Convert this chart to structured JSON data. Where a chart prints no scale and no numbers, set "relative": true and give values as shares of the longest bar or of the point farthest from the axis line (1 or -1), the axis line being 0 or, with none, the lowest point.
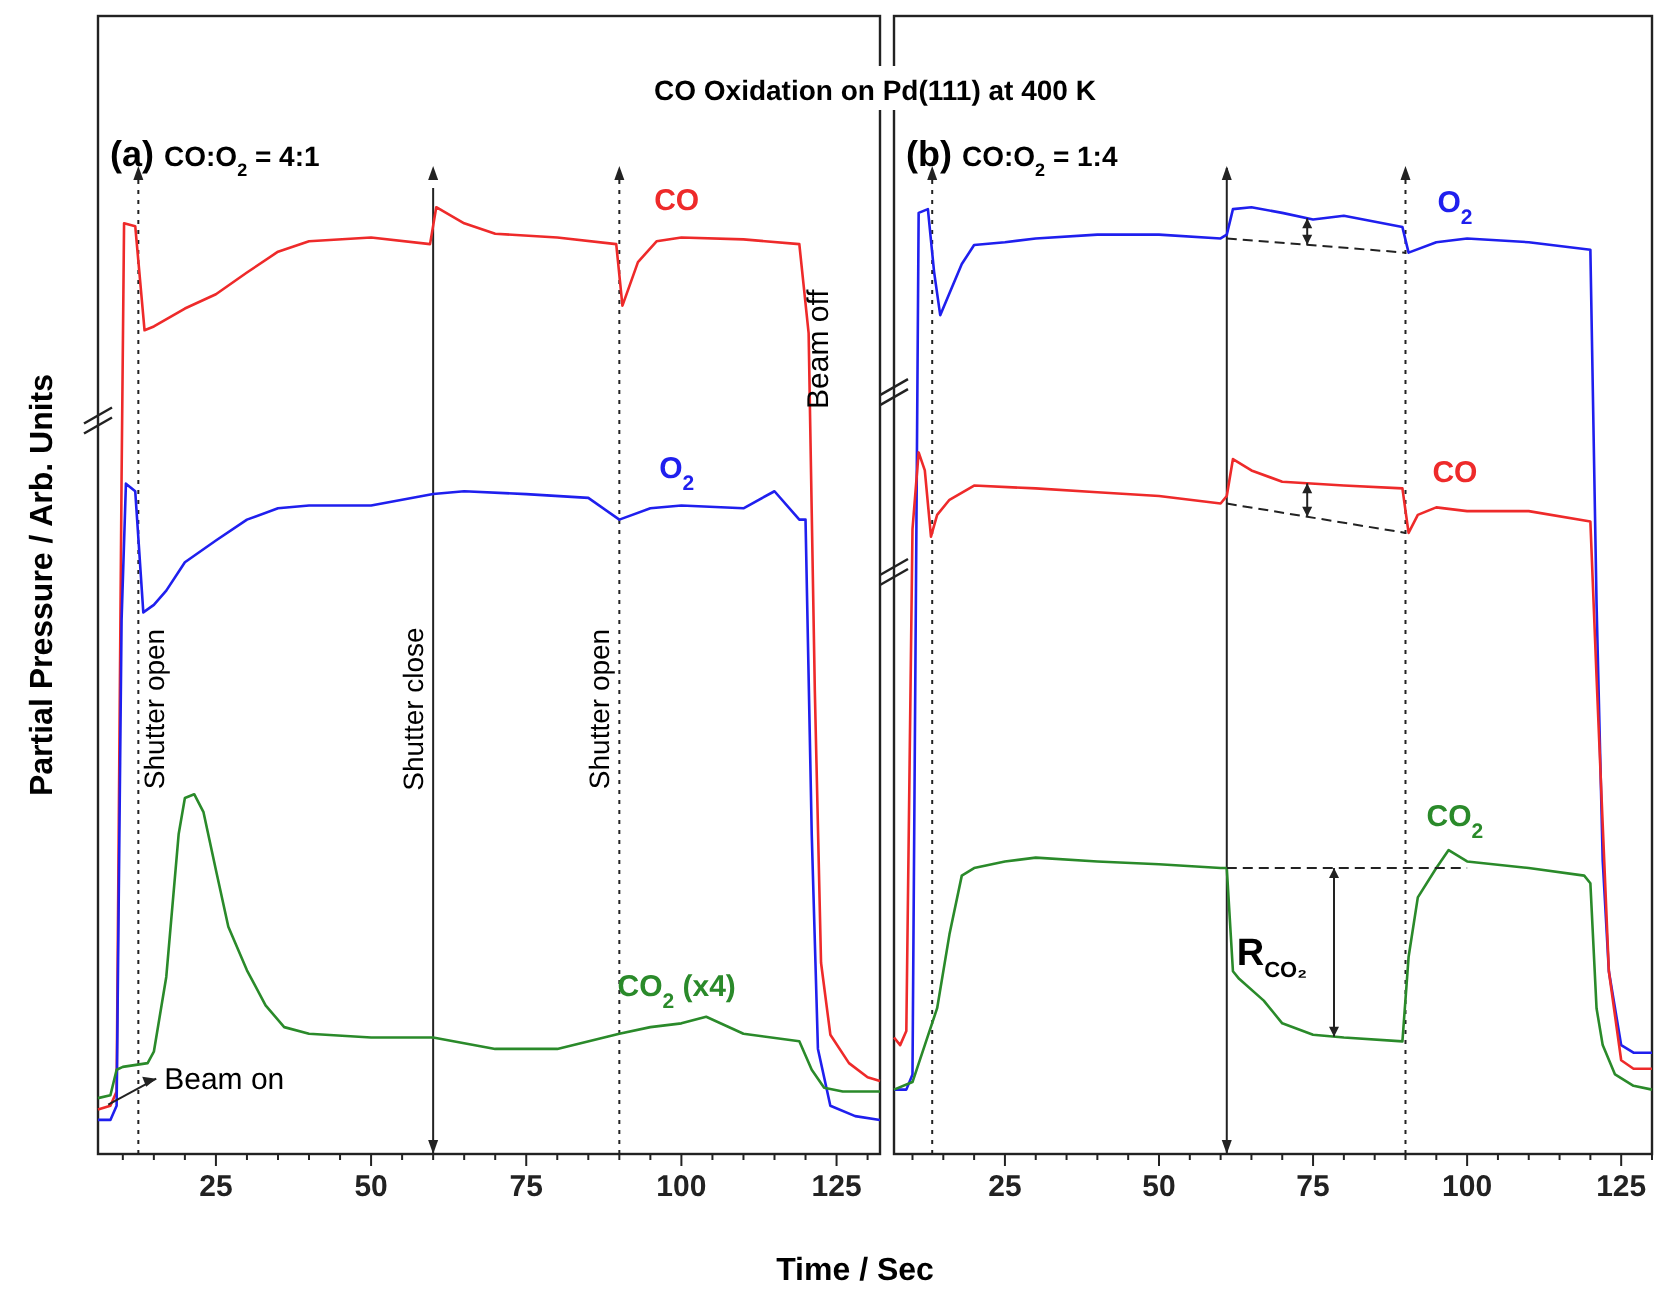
{
  "chart_data": [
    {
      "type": "line",
      "title": "CO Oxidation on Pd(111) at 400 K",
      "subtitle": "(a) CO:O$_{2}$ = 4:1",
      "xlabel": "Time / Sec",
      "ylabel": "Partial Pressure / Arb. Units",
      "relative": true,
      "tick_labels": "x",
      "legend": false,
      "xlim": [
        6,
        132
      ],
      "xticks": [
        {
          "value": 10,
          "label": null
        },
        {
          "value": 15,
          "label": null
        },
        {
          "value": 20,
          "label": null
        },
        25,
        {
          "value": 30,
          "label": null
        },
        {
          "value": 35,
          "label": null
        },
        {
          "value": 40,
          "label": null
        },
        {
          "value": 45,
          "label": null
        },
        50,
        {
          "value": 55,
          "label": null
        },
        {
          "value": 60,
          "label": null
        },
        {
          "value": 65,
          "label": null
        },
        {
          "value": 70,
          "label": null
        },
        75,
        {
          "value": 80,
          "label": null
        },
        {
          "value": 85,
          "label": null
        },
        {
          "value": 90,
          "label": null
        },
        {
          "value": 95,
          "label": null
        },
        100,
        {
          "value": 105,
          "label": null
        },
        {
          "value": 110,
          "label": null
        },
        {
          "value": 115,
          "label": null
        },
        {
          "value": 120,
          "label": null
        },
        125,
        {
          "value": 130,
          "label": null
        }
      ],
      "series": [
        {
          "name": "CO",
          "color": "#ee2a2a",
          "x": [
            6,
            8,
            9,
            9.8,
            10.2,
            12,
            13.5,
            15,
            20,
            25,
            30,
            35,
            40,
            50,
            59.5,
            60.5,
            65,
            70,
            80,
            89.5,
            90.5,
            93,
            96,
            100,
            110,
            119,
            120.5,
            121.5,
            122.5,
            124,
            127,
            130,
            132
          ],
          "values": [
            0.047,
            0.051,
            0.066,
            0.715,
            0.983,
            0.98,
            0.87,
            0.874,
            0.893,
            0.908,
            0.931,
            0.953,
            0.964,
            0.968,
            0.961,
            1.0,
            0.983,
            0.972,
            0.968,
            0.961,
            0.896,
            0.942,
            0.964,
            0.968,
            0.966,
            0.961,
            0.867,
            0.489,
            0.202,
            0.126,
            0.096,
            0.081,
            0.077
          ]
        },
        {
          "name": "O$_{2}$",
          "color": "#1f1fee",
          "x": [
            6,
            8,
            9,
            9.8,
            10.5,
            12,
            13.3,
            15,
            17,
            20,
            25,
            30,
            35,
            40,
            50,
            60,
            65,
            75,
            85,
            90,
            95,
            100,
            110,
            115,
            119,
            120,
            121,
            122,
            124,
            128,
            132
          ],
          "values": [
            0.036,
            0.036,
            0.051,
            0.564,
            0.708,
            0.7,
            0.572,
            0.58,
            0.595,
            0.625,
            0.648,
            0.67,
            0.682,
            0.685,
            0.685,
            0.697,
            0.7,
            0.697,
            0.693,
            0.67,
            0.682,
            0.685,
            0.682,
            0.7,
            0.67,
            0.67,
            0.338,
            0.111,
            0.051,
            0.04,
            0.036
          ]
        },
        {
          "name": "CO$_{2}$ (x4)",
          "color": "#2a8a2a",
          "x": [
            6,
            8,
            9,
            10,
            14,
            15,
            17,
            19,
            20,
            21.5,
            23,
            25,
            27,
            30,
            33,
            36,
            40,
            50,
            60,
            70,
            80,
            90,
            95,
            100,
            104,
            110,
            119,
            121,
            123,
            126,
            132
          ],
          "values": [
            0.059,
            0.062,
            0.089,
            0.092,
            0.096,
            0.108,
            0.187,
            0.338,
            0.376,
            0.38,
            0.361,
            0.3,
            0.24,
            0.194,
            0.157,
            0.134,
            0.127,
            0.123,
            0.123,
            0.111,
            0.111,
            0.127,
            0.134,
            0.138,
            0.145,
            0.127,
            0.119,
            0.089,
            0.07,
            0.066,
            0.066
          ]
        }
      ],
      "ref_lines": [
        {
          "axis": "x",
          "value": 12.5,
          "label": "Shutter open",
          "line_style": "dotted"
        },
        {
          "axis": "x",
          "value": 60,
          "label": "Shutter close",
          "line_style": "solid"
        },
        {
          "axis": "x",
          "value": 90,
          "label": "Shutter open",
          "line_style": "dotted"
        }
      ],
      "annotations": [
        "Beam off",
        {
          "text": "Beam on",
          "x": 7,
          "y": 0.05
        }
      ]
    },
    {
      "type": "line",
      "subtitle": "(b) CO:O$_{2}$ = 1:4",
      "relative": true,
      "tick_labels": "x",
      "legend": false,
      "xlim": [
        7,
        130
      ],
      "xticks": [
        {
          "value": 10,
          "label": null
        },
        {
          "value": 15,
          "label": null
        },
        {
          "value": 20,
          "label": null
        },
        25,
        {
          "value": 30,
          "label": null
        },
        {
          "value": 35,
          "label": null
        },
        {
          "value": 40,
          "label": null
        },
        {
          "value": 45,
          "label": null
        },
        50,
        {
          "value": 55,
          "label": null
        },
        {
          "value": 60,
          "label": null
        },
        {
          "value": 65,
          "label": null
        },
        {
          "value": 70,
          "label": null
        },
        75,
        {
          "value": 80,
          "label": null
        },
        {
          "value": 85,
          "label": null
        },
        {
          "value": 90,
          "label": null
        },
        {
          "value": 95,
          "label": null
        },
        100,
        {
          "value": 105,
          "label": null
        },
        {
          "value": 110,
          "label": null
        },
        {
          "value": 115,
          "label": null
        },
        {
          "value": 120,
          "label": null
        },
        125,
        {
          "value": 130,
          "label": null
        }
      ],
      "series": [
        {
          "name": "O$_{2}$",
          "color": "#1f1fee",
          "x": [
            7,
            9,
            10,
            11,
            12.5,
            13.5,
            14.5,
            16,
            18,
            20,
            25,
            30,
            40,
            50,
            60,
            61,
            62,
            65,
            70,
            75,
            80,
            89.5,
            90.5,
            95,
            100,
            110,
            120,
            121,
            122,
            123,
            125,
            127,
            130
          ],
          "values": [
            0.068,
            0.068,
            0.084,
            0.994,
            0.998,
            0.932,
            0.886,
            0.909,
            0.94,
            0.96,
            0.963,
            0.967,
            0.971,
            0.971,
            0.967,
            0.971,
            0.998,
            1.0,
            0.994,
            0.987,
            0.991,
            0.979,
            0.952,
            0.963,
            0.967,
            0.963,
            0.955,
            0.582,
            0.31,
            0.193,
            0.115,
            0.107,
            0.107
          ]
        },
        {
          "name": "CO",
          "color": "#ee2a2a",
          "x": [
            7,
            8,
            9,
            10,
            11,
            12,
            13,
            14,
            16,
            20,
            30,
            40,
            50,
            60,
            61,
            62,
            65,
            70,
            80,
            89.5,
            90.5,
            92,
            95,
            100,
            110,
            120,
            121,
            122,
            123,
            125,
            127,
            130
          ],
          "values": [
            0.123,
            0.115,
            0.13,
            0.66,
            0.741,
            0.722,
            0.652,
            0.675,
            0.691,
            0.706,
            0.703,
            0.699,
            0.695,
            0.687,
            0.695,
            0.734,
            0.722,
            0.71,
            0.706,
            0.703,
            0.656,
            0.675,
            0.683,
            0.679,
            0.679,
            0.668,
            0.504,
            0.348,
            0.193,
            0.099,
            0.09,
            0.09
          ]
        },
        {
          "name": "CO$_{2}$",
          "color": "#2a8a2a",
          "x": [
            7,
            10,
            12,
            14,
            16,
            18,
            20,
            25,
            30,
            40,
            50,
            60,
            61,
            62,
            63,
            67,
            70,
            75,
            80,
            89.5,
            90.5,
            92,
            95,
            97,
            100,
            110,
            119,
            120,
            121,
            122,
            124,
            127,
            130
          ],
          "values": [
            0.068,
            0.076,
            0.115,
            0.154,
            0.232,
            0.294,
            0.302,
            0.309,
            0.313,
            0.309,
            0.306,
            0.302,
            0.302,
            0.193,
            0.185,
            0.162,
            0.138,
            0.126,
            0.123,
            0.119,
            0.208,
            0.271,
            0.302,
            0.321,
            0.309,
            0.302,
            0.294,
            0.286,
            0.154,
            0.115,
            0.084,
            0.072,
            0.068
          ]
        }
      ],
      "ref_lines": [
        {
          "axis": "x",
          "value": 13.2,
          "line_style": "dotted"
        },
        {
          "axis": "x",
          "value": 61,
          "line_style": "solid"
        },
        {
          "axis": "x",
          "value": 90,
          "line_style": "dotted"
        }
      ],
      "annotations": [
        "R$_{CO₂}$"
      ]
    }
  ]
}
